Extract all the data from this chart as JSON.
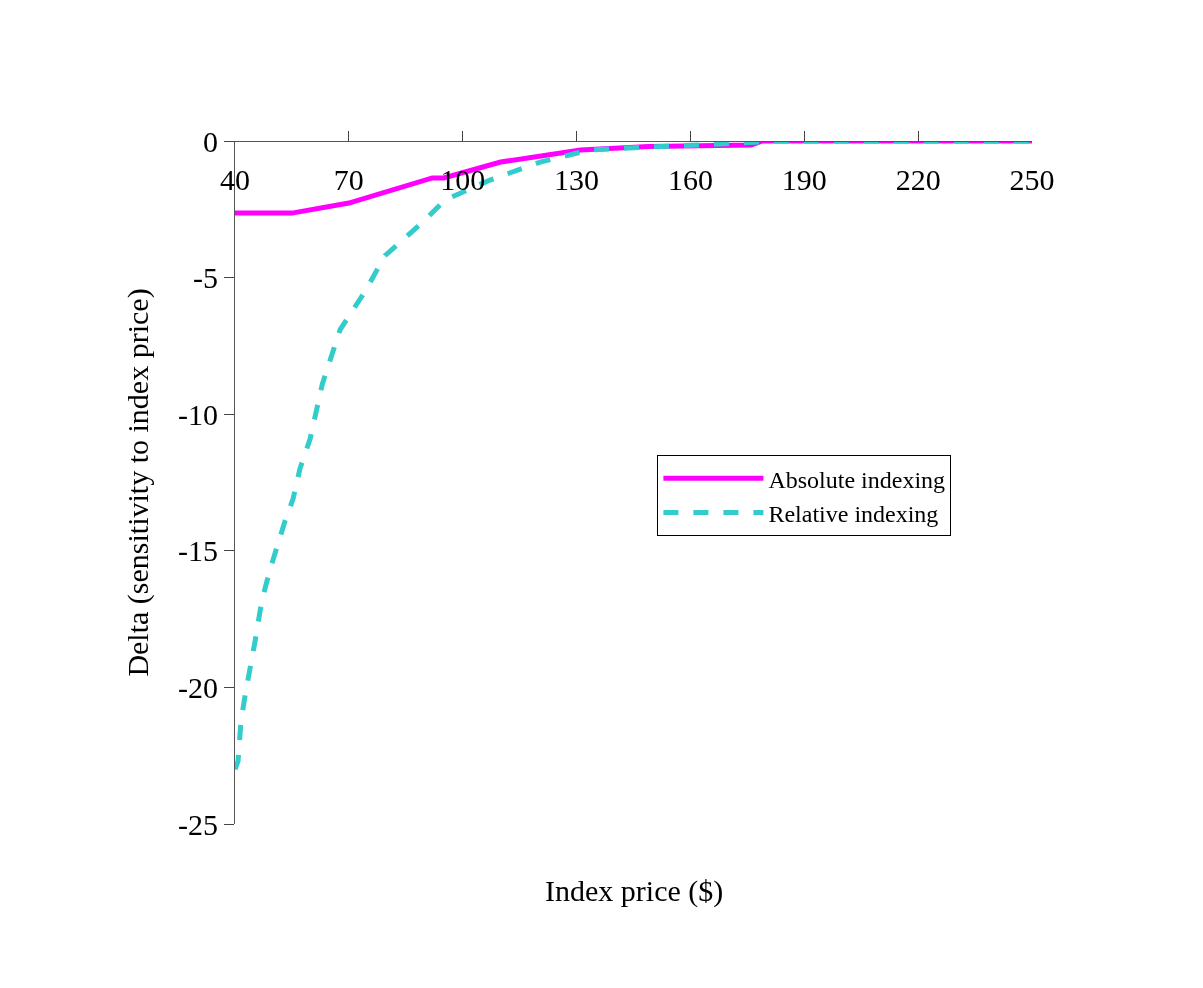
{
  "chart_data": {
    "type": "line",
    "xlabel": "Index price ($)",
    "ylabel": "Delta (sensitivity to index price)",
    "xlim": [
      40,
      250
    ],
    "xticks": [
      40,
      70,
      100,
      130,
      160,
      190,
      220,
      250
    ],
    "ylim": [
      -25,
      0
    ],
    "yticks": [
      0,
      -5,
      -10,
      -15,
      -20,
      -25
    ],
    "legend": "right",
    "marker": "none",
    "series": [
      {
        "name": "Absolute indexing",
        "color": "#ff00ff",
        "line_style": "solid",
        "x": [
          40,
          55,
          70,
          92,
          95,
          110,
          131,
          149,
          176,
          179,
          250
        ],
        "values": [
          -2.64,
          -2.64,
          -2.27,
          -1.35,
          -1.35,
          -0.77,
          -0.33,
          -0.2,
          -0.15,
          0,
          0
        ]
      },
      {
        "name": "Relative indexing",
        "color": "#33cccc",
        "line_style": "dashed",
        "x": [
          40,
          40.8,
          41.6,
          42.9,
          45.3,
          47.1,
          49.2,
          53.2,
          55.3,
          57.1,
          59.8,
          63,
          67.7,
          74.3,
          79.5,
          90,
          95.3,
          107.2,
          120.4,
          133.5,
          149,
          167.8,
          183.6,
          250
        ],
        "values": [
          -23.0,
          -22.7,
          -21.2,
          -20.1,
          -18.3,
          -16.8,
          -15.7,
          -13.9,
          -13.1,
          -12.0,
          -10.9,
          -8.9,
          -6.9,
          -5.5,
          -4.2,
          -2.9,
          -2.16,
          -1.43,
          -0.77,
          -0.33,
          -0.22,
          -0.11,
          0,
          0
        ]
      }
    ]
  }
}
